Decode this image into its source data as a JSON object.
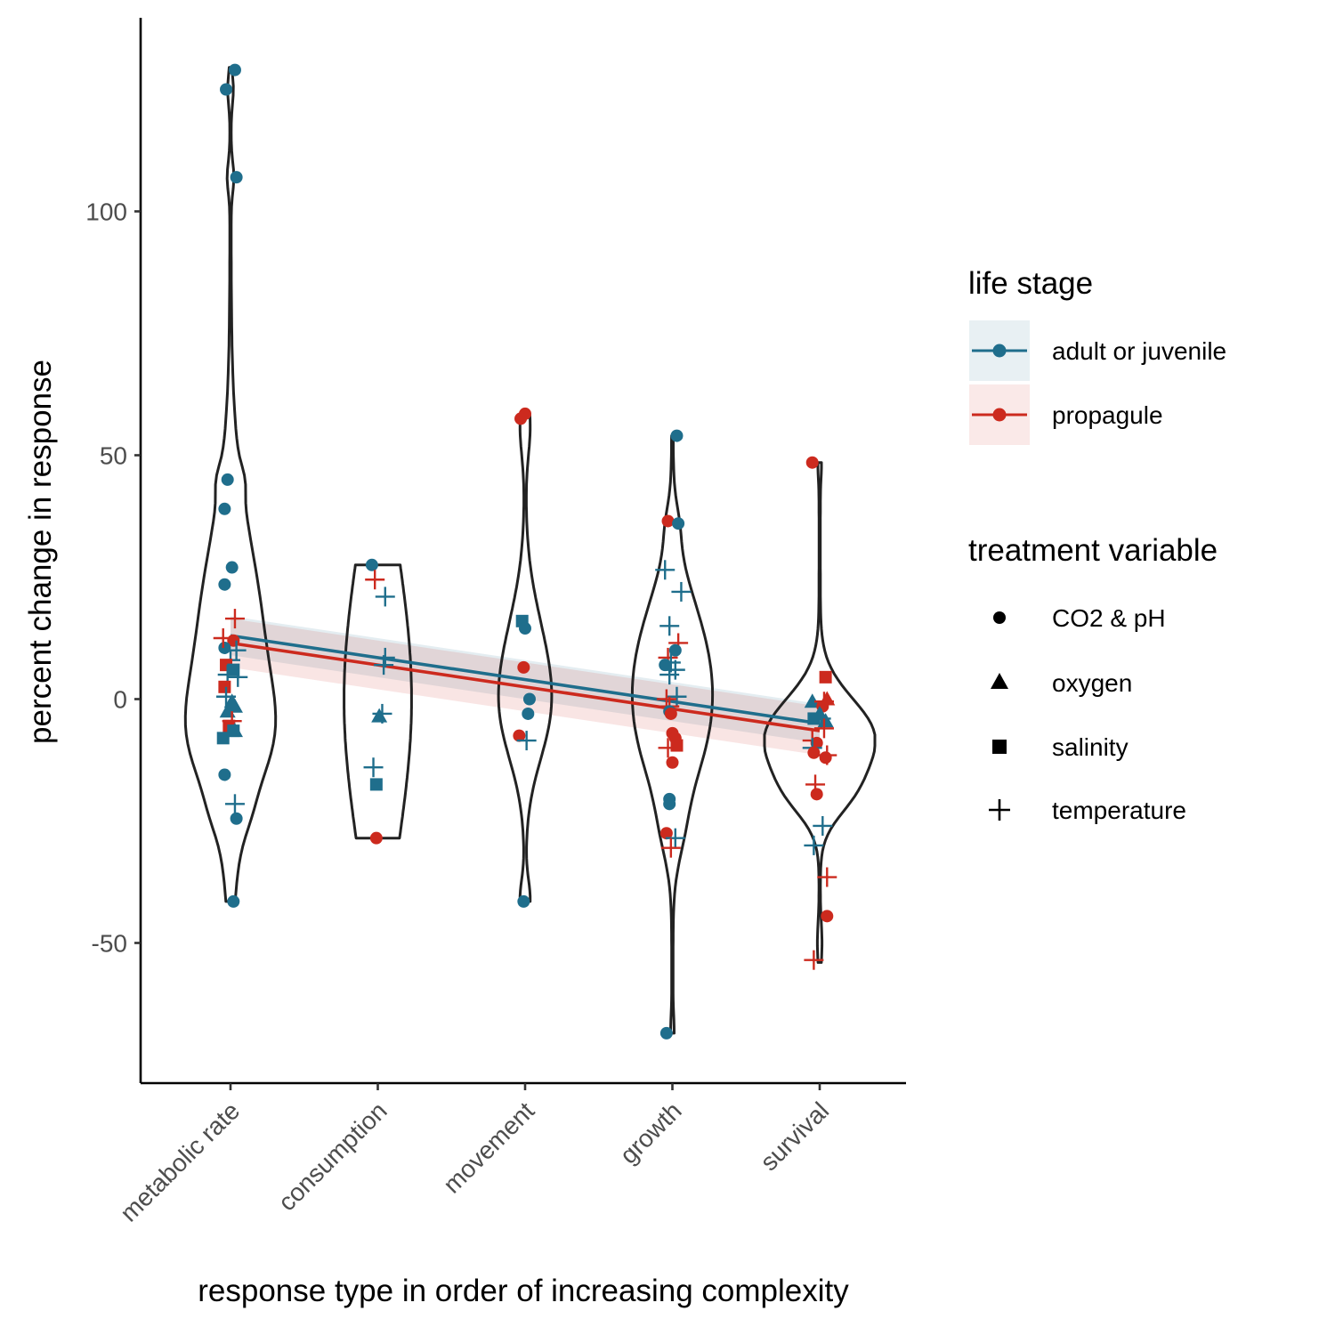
{
  "chart_data": {
    "type": "scatter",
    "xlabel": "response type in order of increasing complexity",
    "ylabel": "percent change in response",
    "categories": [
      "metabolic rate",
      "consumption",
      "movement",
      "growth",
      "survival"
    ],
    "ylim": [
      -78,
      140
    ],
    "yticks": [
      -50,
      0,
      50,
      100
    ],
    "grid": false,
    "legend_placement": "right",
    "colors": {
      "adult or juvenile": "#1f6e8c",
      "propagule": "#cc2a1e"
    },
    "legend": {
      "life_stage": {
        "title": "life stage",
        "items": [
          {
            "label": "adult or juvenile",
            "color": "#1f6e8c"
          },
          {
            "label": "propagule",
            "color": "#cc2a1e"
          }
        ]
      },
      "treatment": {
        "title": "treatment variable",
        "items": [
          {
            "label": "CO2 & pH",
            "shape": "circle"
          },
          {
            "label": "oxygen",
            "shape": "triangle"
          },
          {
            "label": "salinity",
            "shape": "square"
          },
          {
            "label": "temperature",
            "shape": "plus"
          }
        ]
      }
    },
    "violins": [
      {
        "category": "metabolic rate",
        "range": [
          -41.5,
          129.5
        ],
        "bumps": [
          [
            8,
            0.6,
            24
          ],
          [
            -8,
            0.3,
            10
          ],
          [
            45,
            0.07,
            3
          ],
          [
            107,
            0.05,
            3
          ],
          [
            125,
            0.04,
            3
          ],
          [
            -24,
            0.05,
            4
          ]
        ]
      },
      {
        "category": "consumption",
        "range": [
          -28.5,
          27.5
        ],
        "bumps": [
          [
            0,
            0.6,
            30
          ]
        ]
      },
      {
        "category": "movement",
        "range": [
          -41.5,
          58.5
        ],
        "bumps": [
          [
            56,
            0.08,
            6
          ],
          [
            8,
            0.3,
            12
          ],
          [
            -5,
            0.26,
            10
          ],
          [
            -41,
            0.08,
            4
          ]
        ]
      },
      {
        "category": "growth",
        "range": [
          -68.5,
          54
        ],
        "bumps": [
          [
            8,
            0.55,
            14
          ],
          [
            -10,
            0.35,
            12
          ],
          [
            36,
            0.05,
            4
          ],
          [
            -28,
            0.08,
            6
          ],
          [
            -68,
            0.02,
            3
          ]
        ]
      },
      {
        "category": "survival",
        "range": [
          -54,
          48.5
        ],
        "bumps": [
          [
            -8,
            0.98,
            8
          ],
          [
            -20,
            0.3,
            5
          ],
          [
            48,
            0.02,
            3
          ],
          [
            -50,
            0.03,
            4
          ]
        ]
      }
    ],
    "trend_lines": [
      {
        "life_stage": "adult or juvenile",
        "x_start": 1,
        "x_end": 5,
        "y_start": 13,
        "y_end": -5,
        "ci": 4
      },
      {
        "life_stage": "propagule",
        "x_start": 1,
        "x_end": 5,
        "y_start": 11.5,
        "y_end": -6.5,
        "ci": 5
      }
    ],
    "points": [
      {
        "x": 1,
        "dx": 0.03,
        "y": 129,
        "stage": "adult or juvenile",
        "treatment": "CO2 & pH"
      },
      {
        "x": 1,
        "dx": -0.03,
        "y": 125,
        "stage": "adult or juvenile",
        "treatment": "CO2 & pH"
      },
      {
        "x": 1,
        "dx": 0.04,
        "y": 107,
        "stage": "adult or juvenile",
        "treatment": "CO2 & pH"
      },
      {
        "x": 1,
        "dx": -0.02,
        "y": 45,
        "stage": "adult or juvenile",
        "treatment": "CO2 & pH"
      },
      {
        "x": 1,
        "dx": -0.04,
        "y": 39,
        "stage": "adult or juvenile",
        "treatment": "CO2 & pH"
      },
      {
        "x": 1,
        "dx": 0.01,
        "y": 27,
        "stage": "adult or juvenile",
        "treatment": "CO2 & pH"
      },
      {
        "x": 1,
        "dx": -0.04,
        "y": 23.5,
        "stage": "adult or juvenile",
        "treatment": "CO2 & pH"
      },
      {
        "x": 1,
        "dx": 0.02,
        "y": 12,
        "stage": "propagule",
        "treatment": "CO2 & pH"
      },
      {
        "x": 1,
        "dx": -0.04,
        "y": 10.5,
        "stage": "adult or juvenile",
        "treatment": "CO2 & pH"
      },
      {
        "x": 1,
        "dx": 0.03,
        "y": 16.5,
        "stage": "propagule",
        "treatment": "temperature"
      },
      {
        "x": 1,
        "dx": -0.05,
        "y": 12.5,
        "stage": "propagule",
        "treatment": "temperature"
      },
      {
        "x": 1,
        "dx": 0.04,
        "y": 10,
        "stage": "adult or juvenile",
        "treatment": "temperature"
      },
      {
        "x": 1,
        "dx": 0.0,
        "y": 8,
        "stage": "adult or juvenile",
        "treatment": "temperature"
      },
      {
        "x": 1,
        "dx": -0.03,
        "y": 7,
        "stage": "propagule",
        "treatment": "salinity"
      },
      {
        "x": 1,
        "dx": 0.02,
        "y": 6,
        "stage": "adult or juvenile",
        "treatment": "salinity"
      },
      {
        "x": 1,
        "dx": -0.02,
        "y": 5,
        "stage": "adult or juvenile",
        "treatment": "temperature"
      },
      {
        "x": 1,
        "dx": 0.05,
        "y": 4.5,
        "stage": "adult or juvenile",
        "treatment": "temperature"
      },
      {
        "x": 1,
        "dx": -0.04,
        "y": 2.5,
        "stage": "propagule",
        "treatment": "salinity"
      },
      {
        "x": 1,
        "dx": -0.03,
        "y": 0.5,
        "stage": "adult or juvenile",
        "treatment": "temperature"
      },
      {
        "x": 1,
        "dx": 0.01,
        "y": -0.5,
        "stage": "adult or juvenile",
        "treatment": "oxygen"
      },
      {
        "x": 1,
        "dx": 0.03,
        "y": -1.5,
        "stage": "adult or juvenile",
        "treatment": "oxygen"
      },
      {
        "x": 1,
        "dx": -0.02,
        "y": -2.5,
        "stage": "adult or juvenile",
        "treatment": "oxygen"
      },
      {
        "x": 1,
        "dx": 0.01,
        "y": -4.5,
        "stage": "propagule",
        "treatment": "temperature"
      },
      {
        "x": 1,
        "dx": -0.01,
        "y": -5.5,
        "stage": "propagule",
        "treatment": "salinity"
      },
      {
        "x": 1,
        "dx": 0.03,
        "y": -6.5,
        "stage": "adult or juvenile",
        "treatment": "oxygen"
      },
      {
        "x": 1,
        "dx": 0.02,
        "y": -6.5,
        "stage": "adult or juvenile",
        "treatment": "salinity"
      },
      {
        "x": 1,
        "dx": -0.05,
        "y": -8,
        "stage": "adult or juvenile",
        "treatment": "salinity"
      },
      {
        "x": 1,
        "dx": -0.04,
        "y": -15.5,
        "stage": "adult or juvenile",
        "treatment": "CO2 & pH"
      },
      {
        "x": 1,
        "dx": 0.03,
        "y": -21.5,
        "stage": "adult or juvenile",
        "treatment": "temperature"
      },
      {
        "x": 1,
        "dx": 0.04,
        "y": -24.5,
        "stage": "adult or juvenile",
        "treatment": "CO2 & pH"
      },
      {
        "x": 1,
        "dx": 0.02,
        "y": -41.5,
        "stage": "adult or juvenile",
        "treatment": "CO2 & pH"
      },
      {
        "x": 2,
        "dx": -0.04,
        "y": 27.5,
        "stage": "adult or juvenile",
        "treatment": "CO2 & pH"
      },
      {
        "x": 2,
        "dx": -0.02,
        "y": 24.5,
        "stage": "propagule",
        "treatment": "temperature"
      },
      {
        "x": 2,
        "dx": 0.05,
        "y": 21,
        "stage": "adult or juvenile",
        "treatment": "temperature"
      },
      {
        "x": 2,
        "dx": 0.05,
        "y": 8.5,
        "stage": "adult or juvenile",
        "treatment": "temperature"
      },
      {
        "x": 2,
        "dx": 0.04,
        "y": 7,
        "stage": "adult or juvenile",
        "treatment": "temperature"
      },
      {
        "x": 2,
        "dx": 0.03,
        "y": -3,
        "stage": "adult or juvenile",
        "treatment": "temperature"
      },
      {
        "x": 2,
        "dx": 0.01,
        "y": -3.5,
        "stage": "adult or juvenile",
        "treatment": "oxygen"
      },
      {
        "x": 2,
        "dx": -0.03,
        "y": -14,
        "stage": "adult or juvenile",
        "treatment": "temperature"
      },
      {
        "x": 2,
        "dx": -0.01,
        "y": -17.5,
        "stage": "adult or juvenile",
        "treatment": "salinity"
      },
      {
        "x": 2,
        "dx": -0.01,
        "y": -28.5,
        "stage": "propagule",
        "treatment": "CO2 & pH"
      },
      {
        "x": 3,
        "dx": 0.0,
        "y": 58.5,
        "stage": "propagule",
        "treatment": "CO2 & pH"
      },
      {
        "x": 3,
        "dx": -0.03,
        "y": 57.5,
        "stage": "propagule",
        "treatment": "CO2 & pH"
      },
      {
        "x": 3,
        "dx": -0.02,
        "y": 16,
        "stage": "adult or juvenile",
        "treatment": "salinity"
      },
      {
        "x": 3,
        "dx": 0.0,
        "y": 14.5,
        "stage": "adult or juvenile",
        "treatment": "CO2 & pH"
      },
      {
        "x": 3,
        "dx": -0.01,
        "y": 6.5,
        "stage": "propagule",
        "treatment": "CO2 & pH"
      },
      {
        "x": 3,
        "dx": 0.03,
        "y": 0,
        "stage": "adult or juvenile",
        "treatment": "CO2 & pH"
      },
      {
        "x": 3,
        "dx": 0.02,
        "y": -3,
        "stage": "adult or juvenile",
        "treatment": "CO2 & pH"
      },
      {
        "x": 3,
        "dx": -0.04,
        "y": -7.5,
        "stage": "propagule",
        "treatment": "CO2 & pH"
      },
      {
        "x": 3,
        "dx": 0.01,
        "y": -8.5,
        "stage": "adult or juvenile",
        "treatment": "temperature"
      },
      {
        "x": 3,
        "dx": -0.01,
        "y": -41.5,
        "stage": "adult or juvenile",
        "treatment": "CO2 & pH"
      },
      {
        "x": 4,
        "dx": 0.03,
        "y": 54,
        "stage": "adult or juvenile",
        "treatment": "CO2 & pH"
      },
      {
        "x": 4,
        "dx": -0.03,
        "y": 36.5,
        "stage": "propagule",
        "treatment": "CO2 & pH"
      },
      {
        "x": 4,
        "dx": 0.04,
        "y": 36,
        "stage": "adult or juvenile",
        "treatment": "CO2 & pH"
      },
      {
        "x": 4,
        "dx": -0.05,
        "y": 26.5,
        "stage": "adult or juvenile",
        "treatment": "temperature"
      },
      {
        "x": 4,
        "dx": 0.06,
        "y": 22,
        "stage": "adult or juvenile",
        "treatment": "temperature"
      },
      {
        "x": 4,
        "dx": -0.02,
        "y": 15,
        "stage": "adult or juvenile",
        "treatment": "temperature"
      },
      {
        "x": 4,
        "dx": 0.04,
        "y": 11.5,
        "stage": "propagule",
        "treatment": "temperature"
      },
      {
        "x": 4,
        "dx": 0.02,
        "y": 10,
        "stage": "adult or juvenile",
        "treatment": "CO2 & pH"
      },
      {
        "x": 4,
        "dx": -0.03,
        "y": 8.5,
        "stage": "propagule",
        "treatment": "temperature"
      },
      {
        "x": 4,
        "dx": -0.01,
        "y": 7.5,
        "stage": "adult or juvenile",
        "treatment": "temperature"
      },
      {
        "x": 4,
        "dx": -0.05,
        "y": 7,
        "stage": "adult or juvenile",
        "treatment": "CO2 & pH"
      },
      {
        "x": 4,
        "dx": 0.02,
        "y": 6,
        "stage": "adult or juvenile",
        "treatment": "temperature"
      },
      {
        "x": 4,
        "dx": -0.02,
        "y": 5,
        "stage": "adult or juvenile",
        "treatment": "temperature"
      },
      {
        "x": 4,
        "dx": 0.03,
        "y": 0.5,
        "stage": "adult or juvenile",
        "treatment": "temperature"
      },
      {
        "x": 4,
        "dx": -0.04,
        "y": 0,
        "stage": "propagule",
        "treatment": "temperature"
      },
      {
        "x": 4,
        "dx": -0.02,
        "y": -1.5,
        "stage": "propagule",
        "treatment": "temperature"
      },
      {
        "x": 4,
        "dx": -0.02,
        "y": -2.5,
        "stage": "adult or juvenile",
        "treatment": "CO2 & pH"
      },
      {
        "x": 4,
        "dx": -0.01,
        "y": -3,
        "stage": "propagule",
        "treatment": "CO2 & pH"
      },
      {
        "x": 4,
        "dx": 0.0,
        "y": -7,
        "stage": "propagule",
        "treatment": "CO2 & pH"
      },
      {
        "x": 4,
        "dx": 0.02,
        "y": -8,
        "stage": "propagule",
        "treatment": "CO2 & pH"
      },
      {
        "x": 4,
        "dx": 0.03,
        "y": -9.5,
        "stage": "propagule",
        "treatment": "salinity"
      },
      {
        "x": 4,
        "dx": -0.03,
        "y": -10,
        "stage": "propagule",
        "treatment": "temperature"
      },
      {
        "x": 4,
        "dx": 0.0,
        "y": -13,
        "stage": "propagule",
        "treatment": "CO2 & pH"
      },
      {
        "x": 4,
        "dx": -0.02,
        "y": -20.5,
        "stage": "adult or juvenile",
        "treatment": "CO2 & pH"
      },
      {
        "x": 4,
        "dx": -0.02,
        "y": -21.5,
        "stage": "adult or juvenile",
        "treatment": "CO2 & pH"
      },
      {
        "x": 4,
        "dx": -0.04,
        "y": -27.5,
        "stage": "propagule",
        "treatment": "CO2 & pH"
      },
      {
        "x": 4,
        "dx": 0.02,
        "y": -28.5,
        "stage": "adult or juvenile",
        "treatment": "temperature"
      },
      {
        "x": 4,
        "dx": -0.01,
        "y": -30.5,
        "stage": "propagule",
        "treatment": "temperature"
      },
      {
        "x": 4,
        "dx": -0.04,
        "y": -68.5,
        "stage": "adult or juvenile",
        "treatment": "CO2 & pH"
      },
      {
        "x": 5,
        "dx": -0.05,
        "y": 48.5,
        "stage": "propagule",
        "treatment": "CO2 & pH"
      },
      {
        "x": 5,
        "dx": 0.04,
        "y": 4.5,
        "stage": "propagule",
        "treatment": "salinity"
      },
      {
        "x": 5,
        "dx": -0.05,
        "y": -0.5,
        "stage": "adult or juvenile",
        "treatment": "oxygen"
      },
      {
        "x": 5,
        "dx": 0.05,
        "y": 0,
        "stage": "propagule",
        "treatment": "oxygen"
      },
      {
        "x": 5,
        "dx": 0.03,
        "y": -0.5,
        "stage": "propagule",
        "treatment": "temperature"
      },
      {
        "x": 5,
        "dx": 0.02,
        "y": -1.5,
        "stage": "propagule",
        "treatment": "CO2 & pH"
      },
      {
        "x": 5,
        "dx": 0.0,
        "y": -3,
        "stage": "adult or juvenile",
        "treatment": "oxygen"
      },
      {
        "x": 5,
        "dx": 0.01,
        "y": -4,
        "stage": "adult or juvenile",
        "treatment": "temperature"
      },
      {
        "x": 5,
        "dx": -0.04,
        "y": -4,
        "stage": "adult or juvenile",
        "treatment": "salinity"
      },
      {
        "x": 5,
        "dx": 0.04,
        "y": -4.5,
        "stage": "adult or juvenile",
        "treatment": "oxygen"
      },
      {
        "x": 5,
        "dx": 0.03,
        "y": -6,
        "stage": "propagule",
        "treatment": "temperature"
      },
      {
        "x": 5,
        "dx": -0.05,
        "y": -8.5,
        "stage": "propagule",
        "treatment": "temperature"
      },
      {
        "x": 5,
        "dx": -0.02,
        "y": -9,
        "stage": "propagule",
        "treatment": "CO2 & pH"
      },
      {
        "x": 5,
        "dx": -0.05,
        "y": -10,
        "stage": "adult or juvenile",
        "treatment": "temperature"
      },
      {
        "x": 5,
        "dx": -0.04,
        "y": -11,
        "stage": "propagule",
        "treatment": "CO2 & pH"
      },
      {
        "x": 5,
        "dx": 0.05,
        "y": -11.5,
        "stage": "propagule",
        "treatment": "temperature"
      },
      {
        "x": 5,
        "dx": 0.04,
        "y": -12,
        "stage": "propagule",
        "treatment": "CO2 & pH"
      },
      {
        "x": 5,
        "dx": -0.03,
        "y": -17.5,
        "stage": "propagule",
        "treatment": "temperature"
      },
      {
        "x": 5,
        "dx": -0.02,
        "y": -19.5,
        "stage": "propagule",
        "treatment": "CO2 & pH"
      },
      {
        "x": 5,
        "dx": 0.02,
        "y": -26,
        "stage": "adult or juvenile",
        "treatment": "temperature"
      },
      {
        "x": 5,
        "dx": -0.04,
        "y": -30,
        "stage": "adult or juvenile",
        "treatment": "temperature"
      },
      {
        "x": 5,
        "dx": 0.05,
        "y": -36.5,
        "stage": "propagule",
        "treatment": "temperature"
      },
      {
        "x": 5,
        "dx": 0.05,
        "y": -44.5,
        "stage": "propagule",
        "treatment": "CO2 & pH"
      },
      {
        "x": 5,
        "dx": -0.04,
        "y": -53.5,
        "stage": "propagule",
        "treatment": "temperature"
      }
    ]
  }
}
